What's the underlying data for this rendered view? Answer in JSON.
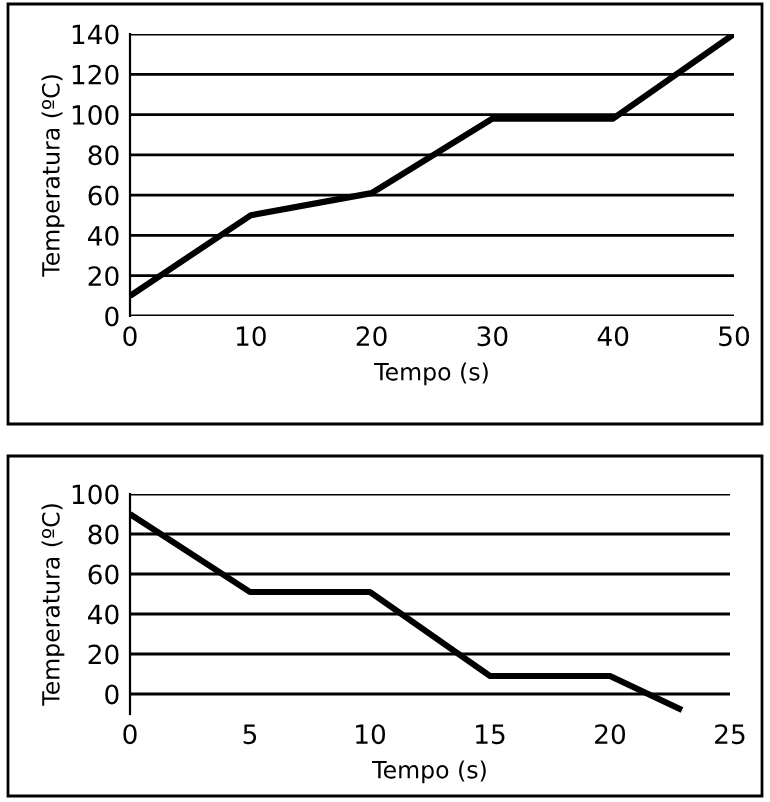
{
  "chart_data": [
    {
      "type": "line",
      "xlabel": "Tempo (s)",
      "ylabel": "Temperatura (ºC)",
      "x": [
        0,
        10,
        20,
        30,
        40,
        50
      ],
      "series": [
        {
          "color": "#000000",
          "values": [
            10,
            50,
            61,
            98,
            98,
            140
          ]
        }
      ],
      "xlim": [
        0,
        50
      ],
      "xticks": [
        0,
        10,
        20,
        30,
        40,
        50
      ],
      "ylim": [
        0,
        140
      ],
      "yticks": [
        0,
        20,
        40,
        60,
        80,
        100,
        120,
        140
      ],
      "grid": "y",
      "legend": false
    },
    {
      "type": "line",
      "xlabel": "Tempo (s)",
      "ylabel": "Temperatura (ºC)",
      "x": [
        0,
        5,
        10,
        15,
        20,
        23
      ],
      "series": [
        {
          "color": "#000000",
          "values": [
            90,
            51,
            51,
            9,
            9,
            -8
          ]
        }
      ],
      "xlim": [
        0,
        25
      ],
      "xticks": [
        0,
        5,
        10,
        15,
        20,
        25
      ],
      "ylim": [
        -10,
        100
      ],
      "yticks": [
        0,
        20,
        40,
        60,
        80,
        100
      ],
      "grid": "y",
      "legend": false
    }
  ]
}
